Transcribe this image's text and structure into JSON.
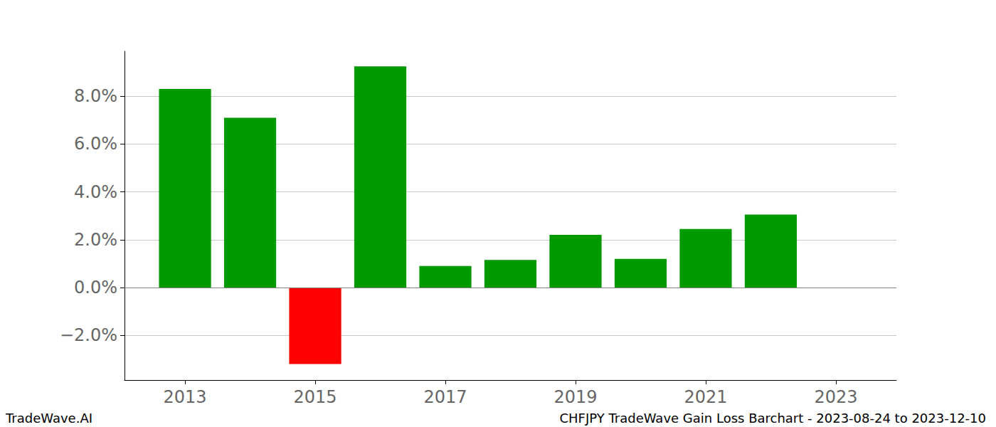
{
  "chart_data": {
    "type": "bar",
    "title": "CHFJPY TradeWave Gain Loss Barchart - 2023-08-24 to 2023-12-10",
    "annotations": [
      "TradeWave.AI"
    ],
    "x": [
      2013,
      2014,
      2015,
      2016,
      2017,
      2018,
      2019,
      2020,
      2021,
      2022
    ],
    "values": [
      8.3,
      7.1,
      -3.2,
      9.25,
      0.9,
      1.15,
      2.2,
      1.2,
      2.45,
      3.05
    ],
    "colors": [
      "#009900",
      "#009900",
      "#ff0000",
      "#009900",
      "#009900",
      "#009900",
      "#009900",
      "#009900",
      "#009900",
      "#009900"
    ],
    "xlim": [
      2012.07,
      2023.93
    ],
    "xticks": [
      2013,
      2015,
      2017,
      2019,
      2021,
      2023
    ],
    "ylim": [
      -3.87,
      9.88
    ],
    "yticks": [
      {
        "value": -2,
        "label": "−2.0%"
      },
      {
        "value": 0,
        "label": "0.0%"
      },
      {
        "value": 2,
        "label": "2.0%"
      },
      {
        "value": 4,
        "label": "4.0%"
      },
      {
        "value": 6,
        "label": "6.0%"
      },
      {
        "value": 8,
        "label": "8.0%"
      }
    ],
    "grid": true
  }
}
